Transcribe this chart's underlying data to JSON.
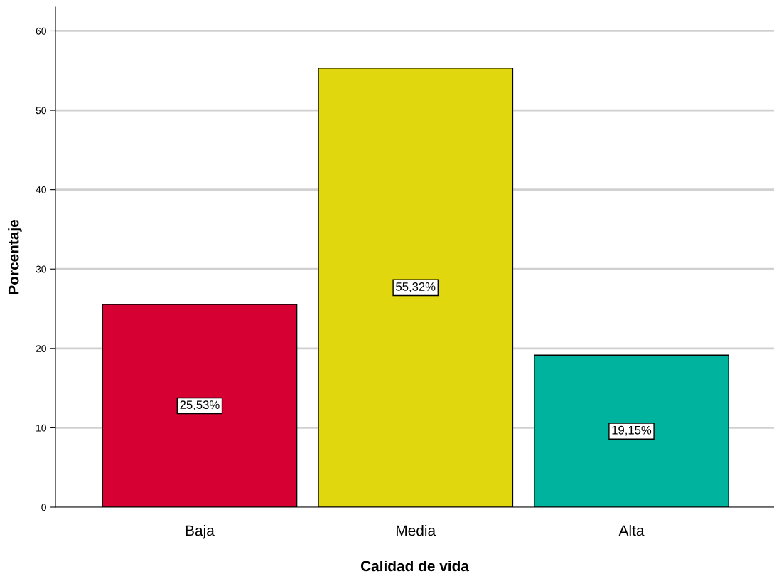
{
  "chart_data": {
    "type": "bar",
    "xlabel": "Calidad de vida",
    "ylabel": "Porcentaje",
    "categories": [
      "Baja",
      "Media",
      "Alta"
    ],
    "values": [
      25.53,
      55.32,
      19.15
    ],
    "colors": [
      "#d60032",
      "#e1d70f",
      "#00b39f"
    ],
    "value_labels": [
      "25,53%",
      "55,32%",
      "19,15%"
    ],
    "ylim": [
      0,
      63
    ],
    "yticks": [
      0,
      10,
      20,
      30,
      40,
      50,
      60
    ],
    "grid": "y"
  }
}
